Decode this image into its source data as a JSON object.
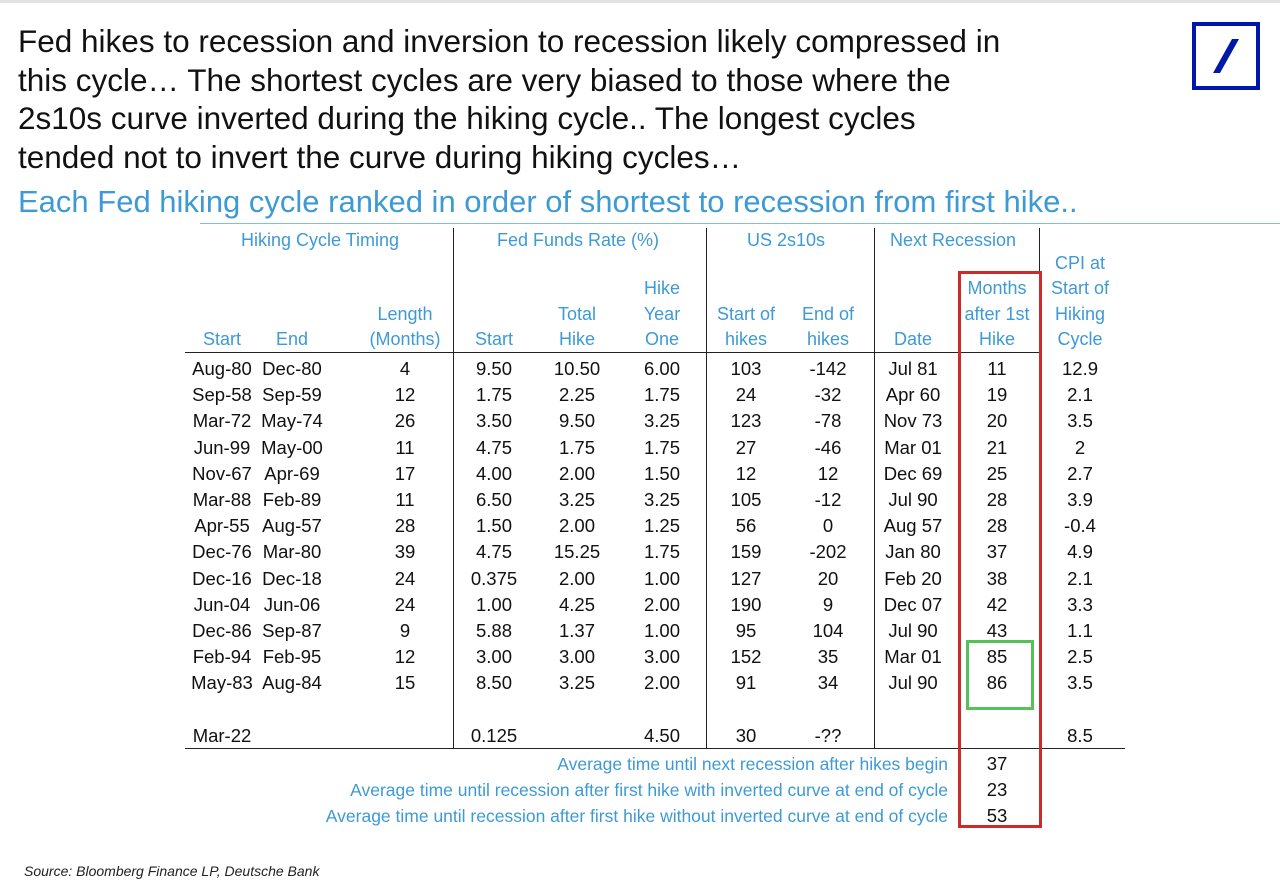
{
  "headline": [
    "Fed hikes to recession and inversion to recession likely compressed in",
    "this cycle… The shortest cycles are very biased to those where the",
    "2s10s curve inverted during the hiking cycle.. The longest cycles",
    "tended not to invert the curve during hiking cycles…"
  ],
  "subtitle": "Each Fed hiking cycle ranked in order of shortest to recession from first hike..",
  "logo_icon": "deutsche-bank-logo-icon",
  "colors": {
    "accent": "#3d9ad5",
    "logo": "#0018a8",
    "red_box": "#cc2b2b",
    "green_box": "#55c15a"
  },
  "table": {
    "groups": [
      "Hiking Cycle Timing",
      "Fed Funds Rate (%)",
      "US 2s10s",
      "Next Recession"
    ],
    "columns": [
      [
        "Start"
      ],
      [
        "End"
      ],
      [
        "Length",
        "(Months)"
      ],
      [
        "Start"
      ],
      [
        "Total",
        "Hike"
      ],
      [
        "Hike",
        "Year",
        "One"
      ],
      [
        "Start of",
        "hikes"
      ],
      [
        "End of",
        "hikes"
      ],
      [
        "Date"
      ],
      [
        "Months",
        "after 1st",
        "Hike"
      ],
      [
        "CPI at",
        "Start of",
        "Hiking",
        "Cycle"
      ]
    ],
    "rows": [
      [
        "Aug-80",
        "Dec-80",
        "4",
        "9.50",
        "10.50",
        "6.00",
        "103",
        "-142",
        "Jul 81",
        "11",
        "12.9"
      ],
      [
        "Sep-58",
        "Sep-59",
        "12",
        "1.75",
        "2.25",
        "1.75",
        "24",
        "-32",
        "Apr 60",
        "19",
        "2.1"
      ],
      [
        "Mar-72",
        "May-74",
        "26",
        "3.50",
        "9.50",
        "3.25",
        "123",
        "-78",
        "Nov 73",
        "20",
        "3.5"
      ],
      [
        "Jun-99",
        "May-00",
        "11",
        "4.75",
        "1.75",
        "1.75",
        "27",
        "-46",
        "Mar 01",
        "21",
        "2"
      ],
      [
        "Nov-67",
        "Apr-69",
        "17",
        "4.00",
        "2.00",
        "1.50",
        "12",
        "12",
        "Dec 69",
        "25",
        "2.7"
      ],
      [
        "Mar-88",
        "Feb-89",
        "11",
        "6.50",
        "3.25",
        "3.25",
        "105",
        "-12",
        "Jul 90",
        "28",
        "3.9"
      ],
      [
        "Apr-55",
        "Aug-57",
        "28",
        "1.50",
        "2.00",
        "1.25",
        "56",
        "0",
        "Aug 57",
        "28",
        "-0.4"
      ],
      [
        "Dec-76",
        "Mar-80",
        "39",
        "4.75",
        "15.25",
        "1.75",
        "159",
        "-202",
        "Jan 80",
        "37",
        "4.9"
      ],
      [
        "Dec-16",
        "Dec-18",
        "24",
        "0.375",
        "2.00",
        "1.00",
        "127",
        "20",
        "Feb 20",
        "38",
        "2.1"
      ],
      [
        "Jun-04",
        "Jun-06",
        "24",
        "1.00",
        "4.25",
        "2.00",
        "190",
        "9",
        "Dec 07",
        "42",
        "3.3"
      ],
      [
        "Dec-86",
        "Sep-87",
        "9",
        "5.88",
        "1.37",
        "1.00",
        "95",
        "104",
        "Jul 90",
        "43",
        "1.1"
      ],
      [
        "Feb-94",
        "Feb-95",
        "12",
        "3.00",
        "3.00",
        "3.00",
        "152",
        "35",
        "Mar 01",
        "85",
        "2.5"
      ],
      [
        "May-83",
        "Aug-84",
        "15",
        "8.50",
        "3.25",
        "2.00",
        "91",
        "34",
        "Jul 90",
        "86",
        "3.5"
      ]
    ],
    "current": [
      "Mar-22",
      "",
      "",
      "0.125",
      "",
      "4.50",
      "30",
      "-??",
      "",
      "",
      "8.5"
    ],
    "averages": [
      {
        "label": "Average time until next recession after hikes begin",
        "value": "37"
      },
      {
        "label": "Average time until recession after first hike with inverted curve at end of cycle",
        "value": "23"
      },
      {
        "label": "Average time until recession after first hike without inverted curve at end of cycle",
        "value": "53"
      }
    ]
  },
  "source": "Source: Bloomberg Finance LP, Deutsche Bank"
}
